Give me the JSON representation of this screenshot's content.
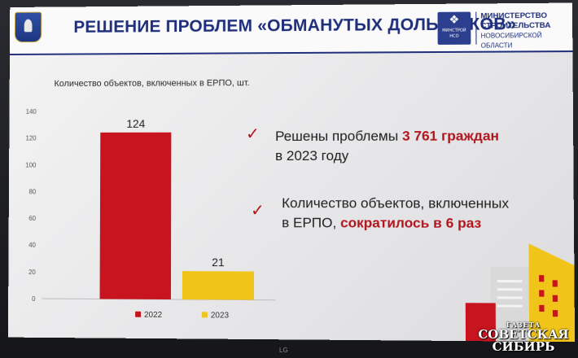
{
  "header": {
    "title": "РЕШЕНИЕ ПРОБЛЕМ «ОБМАНУТЫХ ДОЛЬЩИКОВ»",
    "ministry_logo_caption": "МИНСТРОЙ НСО",
    "ministry_line1": "МИНИСТЕРСТВО",
    "ministry_line2": "СТРОИТЕЛЬСТВА",
    "ministry_line3": "НОВОСИБИРСКОЙ ОБЛАСТИ"
  },
  "chart_data": {
    "type": "bar",
    "title": "Количество объектов, включенных в ЕРПО, шт.",
    "categories": [
      "2022",
      "2023"
    ],
    "values": [
      124,
      21
    ],
    "data_labels": [
      "124",
      "21"
    ],
    "colors": [
      "#c8141e",
      "#f0c419"
    ],
    "ylim": [
      0,
      140
    ],
    "y_ticks": [
      "0",
      "20",
      "40",
      "60",
      "80",
      "100",
      "120",
      "140"
    ],
    "legend": [
      {
        "label": "2022",
        "color": "#c8141e"
      },
      {
        "label": "2023",
        "color": "#f0c419"
      }
    ],
    "legend_position": "bottom",
    "grid": false
  },
  "points": [
    {
      "text_before": "Решены проблемы ",
      "highlight": "3 761 граждан",
      "text_after": "в 2023 году"
    },
    {
      "text_before": "Количество объектов, включенных",
      "text_line2": "в ЕРПО, ",
      "highlight": "сократилось в 6 раз"
    }
  ],
  "check_symbol": "✓",
  "watermark": {
    "small": "ГАЗЕТА",
    "line1": "СОВЕТСКАЯ",
    "line2": "СИБИРЬ"
  },
  "monitor_brand": "LG",
  "colors": {
    "navy": "#1f2f7a",
    "accent_red": "#b0151d",
    "bar_2022": "#c8141e",
    "bar_2023": "#f0c419"
  }
}
